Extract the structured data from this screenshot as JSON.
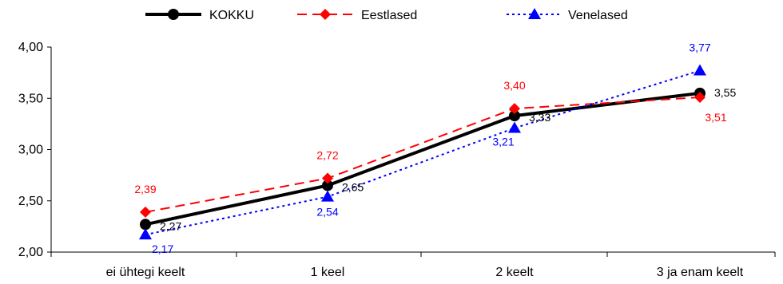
{
  "chart_data": {
    "type": "line",
    "categories": [
      "ei ühtegi keelt",
      "1 keel",
      "2 keelt",
      "3 ja enam keelt"
    ],
    "ylim": [
      2.0,
      4.0
    ],
    "yticks": [
      2.0,
      2.5,
      3.0,
      3.5,
      4.0
    ],
    "ytick_labels": [
      "2,00",
      "2,50",
      "3,00",
      "3,50",
      "4,00"
    ],
    "grid": false,
    "legend_position": "top",
    "series": [
      {
        "name": "KOKKU",
        "values": [
          2.27,
          2.65,
          3.33,
          3.55
        ],
        "labels": [
          "2,27",
          "2,65",
          "3,33",
          "3,55"
        ],
        "color": "#000000",
        "line_style": "solid",
        "marker": "circle"
      },
      {
        "name": "Eestlased",
        "values": [
          2.39,
          2.72,
          3.4,
          3.51
        ],
        "labels": [
          "2,39",
          "2,72",
          "3,40",
          "3,51"
        ],
        "color": "#ff0000",
        "line_style": "dashed",
        "marker": "diamond"
      },
      {
        "name": "Venelased",
        "values": [
          2.17,
          2.54,
          3.21,
          3.77
        ],
        "labels": [
          "2,17",
          "2,54",
          "3,21",
          "3,77"
        ],
        "color": "#0000ff",
        "line_style": "dotted",
        "marker": "triangle"
      }
    ]
  }
}
